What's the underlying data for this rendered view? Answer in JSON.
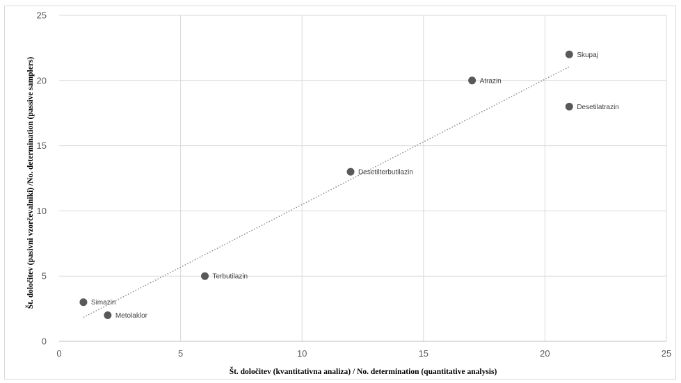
{
  "chart_data": {
    "type": "scatter",
    "xlabel": "Št. določitev (kvantitativna analiza) / No. determination (quantitative analysis)",
    "ylabel": "Št. določitev (pasivni vzorčevalniki) /No. determination (passive samplers)",
    "xlim": [
      0,
      25
    ],
    "ylim": [
      0,
      25
    ],
    "xticks": [
      0,
      5,
      10,
      15,
      20,
      25
    ],
    "yticks": [
      0,
      5,
      10,
      15,
      20,
      25
    ],
    "grid": true,
    "points": [
      {
        "label": "Simazin",
        "x": 1,
        "y": 3
      },
      {
        "label": "Metolaklor",
        "x": 2,
        "y": 2
      },
      {
        "label": "Terbutilazin",
        "x": 6,
        "y": 5
      },
      {
        "label": "Desetilterbutilazin",
        "x": 12,
        "y": 13
      },
      {
        "label": "Atrazin",
        "x": 17,
        "y": 20
      },
      {
        "label": "Skupaj",
        "x": 21,
        "y": 22
      },
      {
        "label": "Desetilatrazin",
        "x": 21,
        "y": 18
      }
    ],
    "trendline": {
      "type": "linear",
      "style": "dotted",
      "x_range": [
        1,
        21
      ]
    },
    "colors": {
      "marker": "#595959",
      "grid": "#d9d9d9",
      "trendline": "#8c8c8c"
    }
  }
}
